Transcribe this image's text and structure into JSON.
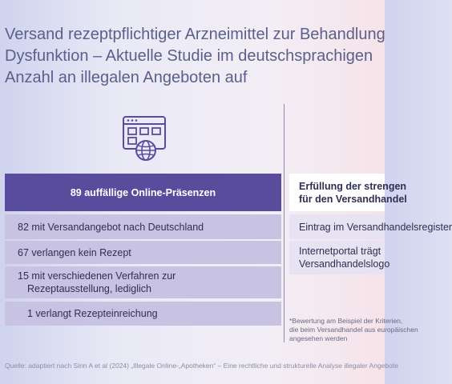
{
  "title": {
    "line1": "Versand rezeptpflichtiger Arzneimittel zur Behandlung",
    "line2": "Dysfunktion – Aktuelle Studie im deutschsprachigen",
    "line3": "Anzahl an illegalen Angeboten auf"
  },
  "left_panel": {
    "icon": "web-shop-globe-icon",
    "header": "89 auffällige Online-Präsenzen",
    "items": [
      "82 mit Versandangebot nach Deutschland",
      "67 verlangen kein Rezept",
      "15 mit verschiedenen Verfahren zur",
      "Rezeptausstellung, lediglich",
      "1 verlangt Rezepteinreichung"
    ]
  },
  "right_panel": {
    "header_line1": "Erfüllung der strengen",
    "header_line2": "für den Versandhandel",
    "item1": "Eintrag im Versandhandelsregister",
    "item2_line1": "Internetportal trägt",
    "item2_line2": "Versandhandelslogo",
    "note_line1": "*Bewertung am Beispiel der Kriterien,",
    "note_line2": "die beim Versandhandel aus europäischen",
    "note_line3": "angesehen werden"
  },
  "source": "Quelle: adaptiert nach Sinn A et al (2024) „Illegale Online-„Apotheken“ – Eine rechtliche und strukturelle Analyse illegaler Angebote",
  "colors": {
    "title": "#5a5f8c",
    "header_bg": "#5a4c9c",
    "item_bg": "#c9c3e3",
    "icon": "#5a4c9c"
  }
}
